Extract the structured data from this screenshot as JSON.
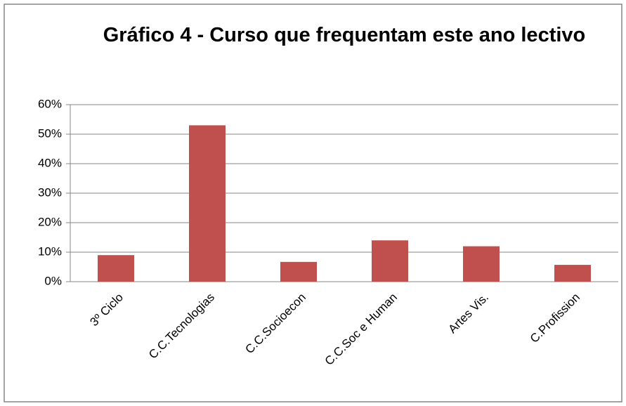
{
  "chart_data": {
    "type": "bar",
    "title": "Gráfico 4 - Curso que frequentam este ano lectivo",
    "categories": [
      "3º Ciclo",
      "C.C.Tecnologias",
      "C.C.Socioecon",
      "C.C.Soc e Human",
      "Artes Vis.",
      "C.Profission"
    ],
    "values": [
      9,
      53,
      6.7,
      14,
      12,
      5.7
    ],
    "color": "#c0504d",
    "ylim": [
      0,
      60
    ],
    "yticks": [
      {
        "value": 0,
        "label": "0%"
      },
      {
        "value": 10,
        "label": "10%"
      },
      {
        "value": 20,
        "label": "20%"
      },
      {
        "value": 30,
        "label": "30%"
      },
      {
        "value": 40,
        "label": "40%"
      },
      {
        "value": 50,
        "label": "50%"
      },
      {
        "value": 60,
        "label": "60%"
      }
    ],
    "grid": true
  }
}
